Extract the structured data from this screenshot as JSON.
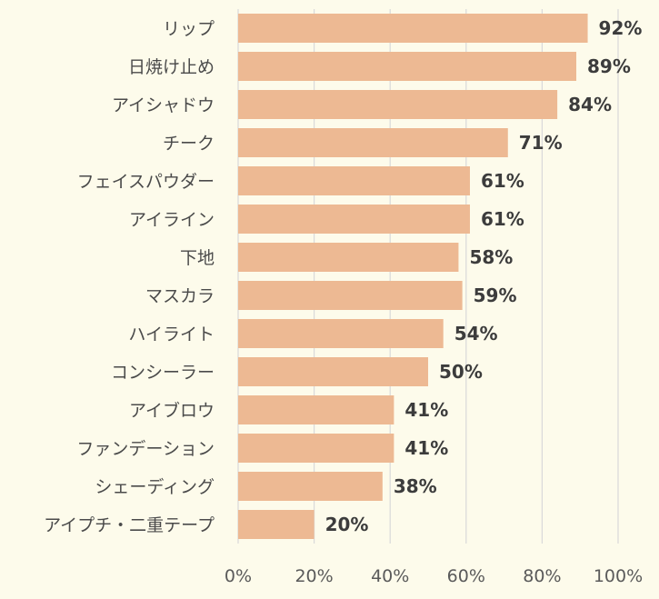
{
  "chart_data": {
    "type": "bar",
    "orientation": "horizontal",
    "categories": [
      "リップ",
      "日焼け止め",
      "アイシャドウ",
      "チーク",
      "フェイスパウダー",
      "アイライン",
      "下地",
      "マスカラ",
      "ハイライト",
      "コンシーラー",
      "アイブロウ",
      "ファンデーション",
      "シェーディング",
      "アイプチ・二重テープ"
    ],
    "values": [
      92,
      89,
      84,
      71,
      61,
      61,
      58,
      59,
      54,
      50,
      41,
      41,
      38,
      20
    ],
    "data_labels": [
      "92%",
      "89%",
      "84%",
      "71%",
      "61%",
      "61%",
      "58%",
      "59%",
      "54%",
      "50%",
      "41%",
      "41%",
      "38%",
      "20%"
    ],
    "x_ticks": [
      "0%",
      "20%",
      "40%",
      "60%",
      "80%",
      "100%"
    ],
    "xlim": [
      0,
      100
    ],
    "grid": "vertical",
    "legend": "none",
    "bar_color": "#edb993",
    "background_color": "#fdfbeb",
    "grid_color": "#d9d9d9"
  }
}
